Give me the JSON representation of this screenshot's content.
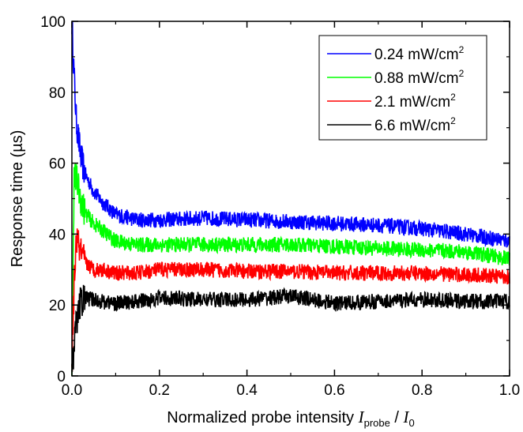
{
  "chart_data": {
    "type": "line",
    "title": "",
    "xlabel": {
      "prefix": "Normalized probe intensity ",
      "var1": "I",
      "var1_sub": "probe",
      "sep": " / ",
      "var2": "I",
      "var2_sub": "0"
    },
    "ylabel": "Response time (µs)",
    "xlim": [
      0.0,
      1.0
    ],
    "ylim": [
      0,
      100
    ],
    "xticks": [
      "0.0",
      "0.2",
      "0.4",
      "0.6",
      "0.8",
      "1.0"
    ],
    "yticks": [
      "0",
      "20",
      "40",
      "60",
      "80",
      "100"
    ],
    "grid": false,
    "legend_position": "top-right",
    "series": [
      {
        "name": "0.24 mW/cm",
        "name_sup": "2",
        "color": "#0000ff",
        "x": [
          0.0,
          0.005,
          0.01,
          0.02,
          0.03,
          0.05,
          0.07,
          0.1,
          0.15,
          0.2,
          0.3,
          0.4,
          0.5,
          0.6,
          0.7,
          0.8,
          0.9,
          1.0
        ],
        "y": [
          100,
          85,
          72,
          62,
          57,
          52,
          49,
          45.5,
          44,
          44,
          44.5,
          44,
          43.5,
          43,
          42.5,
          41.5,
          40,
          38
        ]
      },
      {
        "name": "0.88 mW/cm",
        "name_sup": "2",
        "color": "#00ff00",
        "x": [
          0.0,
          0.005,
          0.01,
          0.02,
          0.03,
          0.05,
          0.07,
          0.1,
          0.15,
          0.2,
          0.3,
          0.4,
          0.5,
          0.6,
          0.7,
          0.8,
          0.9,
          1.0
        ],
        "y": [
          2,
          55,
          56,
          50,
          46,
          43,
          41,
          38,
          37,
          37,
          37,
          37,
          37,
          36.5,
          36,
          35.5,
          35,
          33
        ]
      },
      {
        "name": "2.1 mW/cm",
        "name_sup": "2",
        "color": "#ff0000",
        "x": [
          0.0,
          0.005,
          0.01,
          0.02,
          0.03,
          0.05,
          0.07,
          0.1,
          0.15,
          0.2,
          0.3,
          0.4,
          0.5,
          0.6,
          0.7,
          0.8,
          0.9,
          1.0
        ],
        "y": [
          2,
          25,
          39,
          35,
          32,
          30,
          30,
          29,
          29,
          30,
          30,
          29.5,
          29.5,
          29,
          29,
          29,
          28.5,
          28
        ]
      },
      {
        "name": "6.6 mW/cm",
        "name_sup": "2",
        "color": "#000000",
        "x": [
          0.0,
          0.005,
          0.01,
          0.02,
          0.03,
          0.05,
          0.07,
          0.1,
          0.15,
          0.2,
          0.3,
          0.4,
          0.5,
          0.6,
          0.7,
          0.8,
          0.9,
          1.0
        ],
        "y": [
          2,
          8,
          15,
          21,
          22,
          21.5,
          21,
          20.5,
          21,
          22,
          21.5,
          21.5,
          22.5,
          20.5,
          21,
          21.5,
          21,
          21
        ]
      }
    ]
  }
}
